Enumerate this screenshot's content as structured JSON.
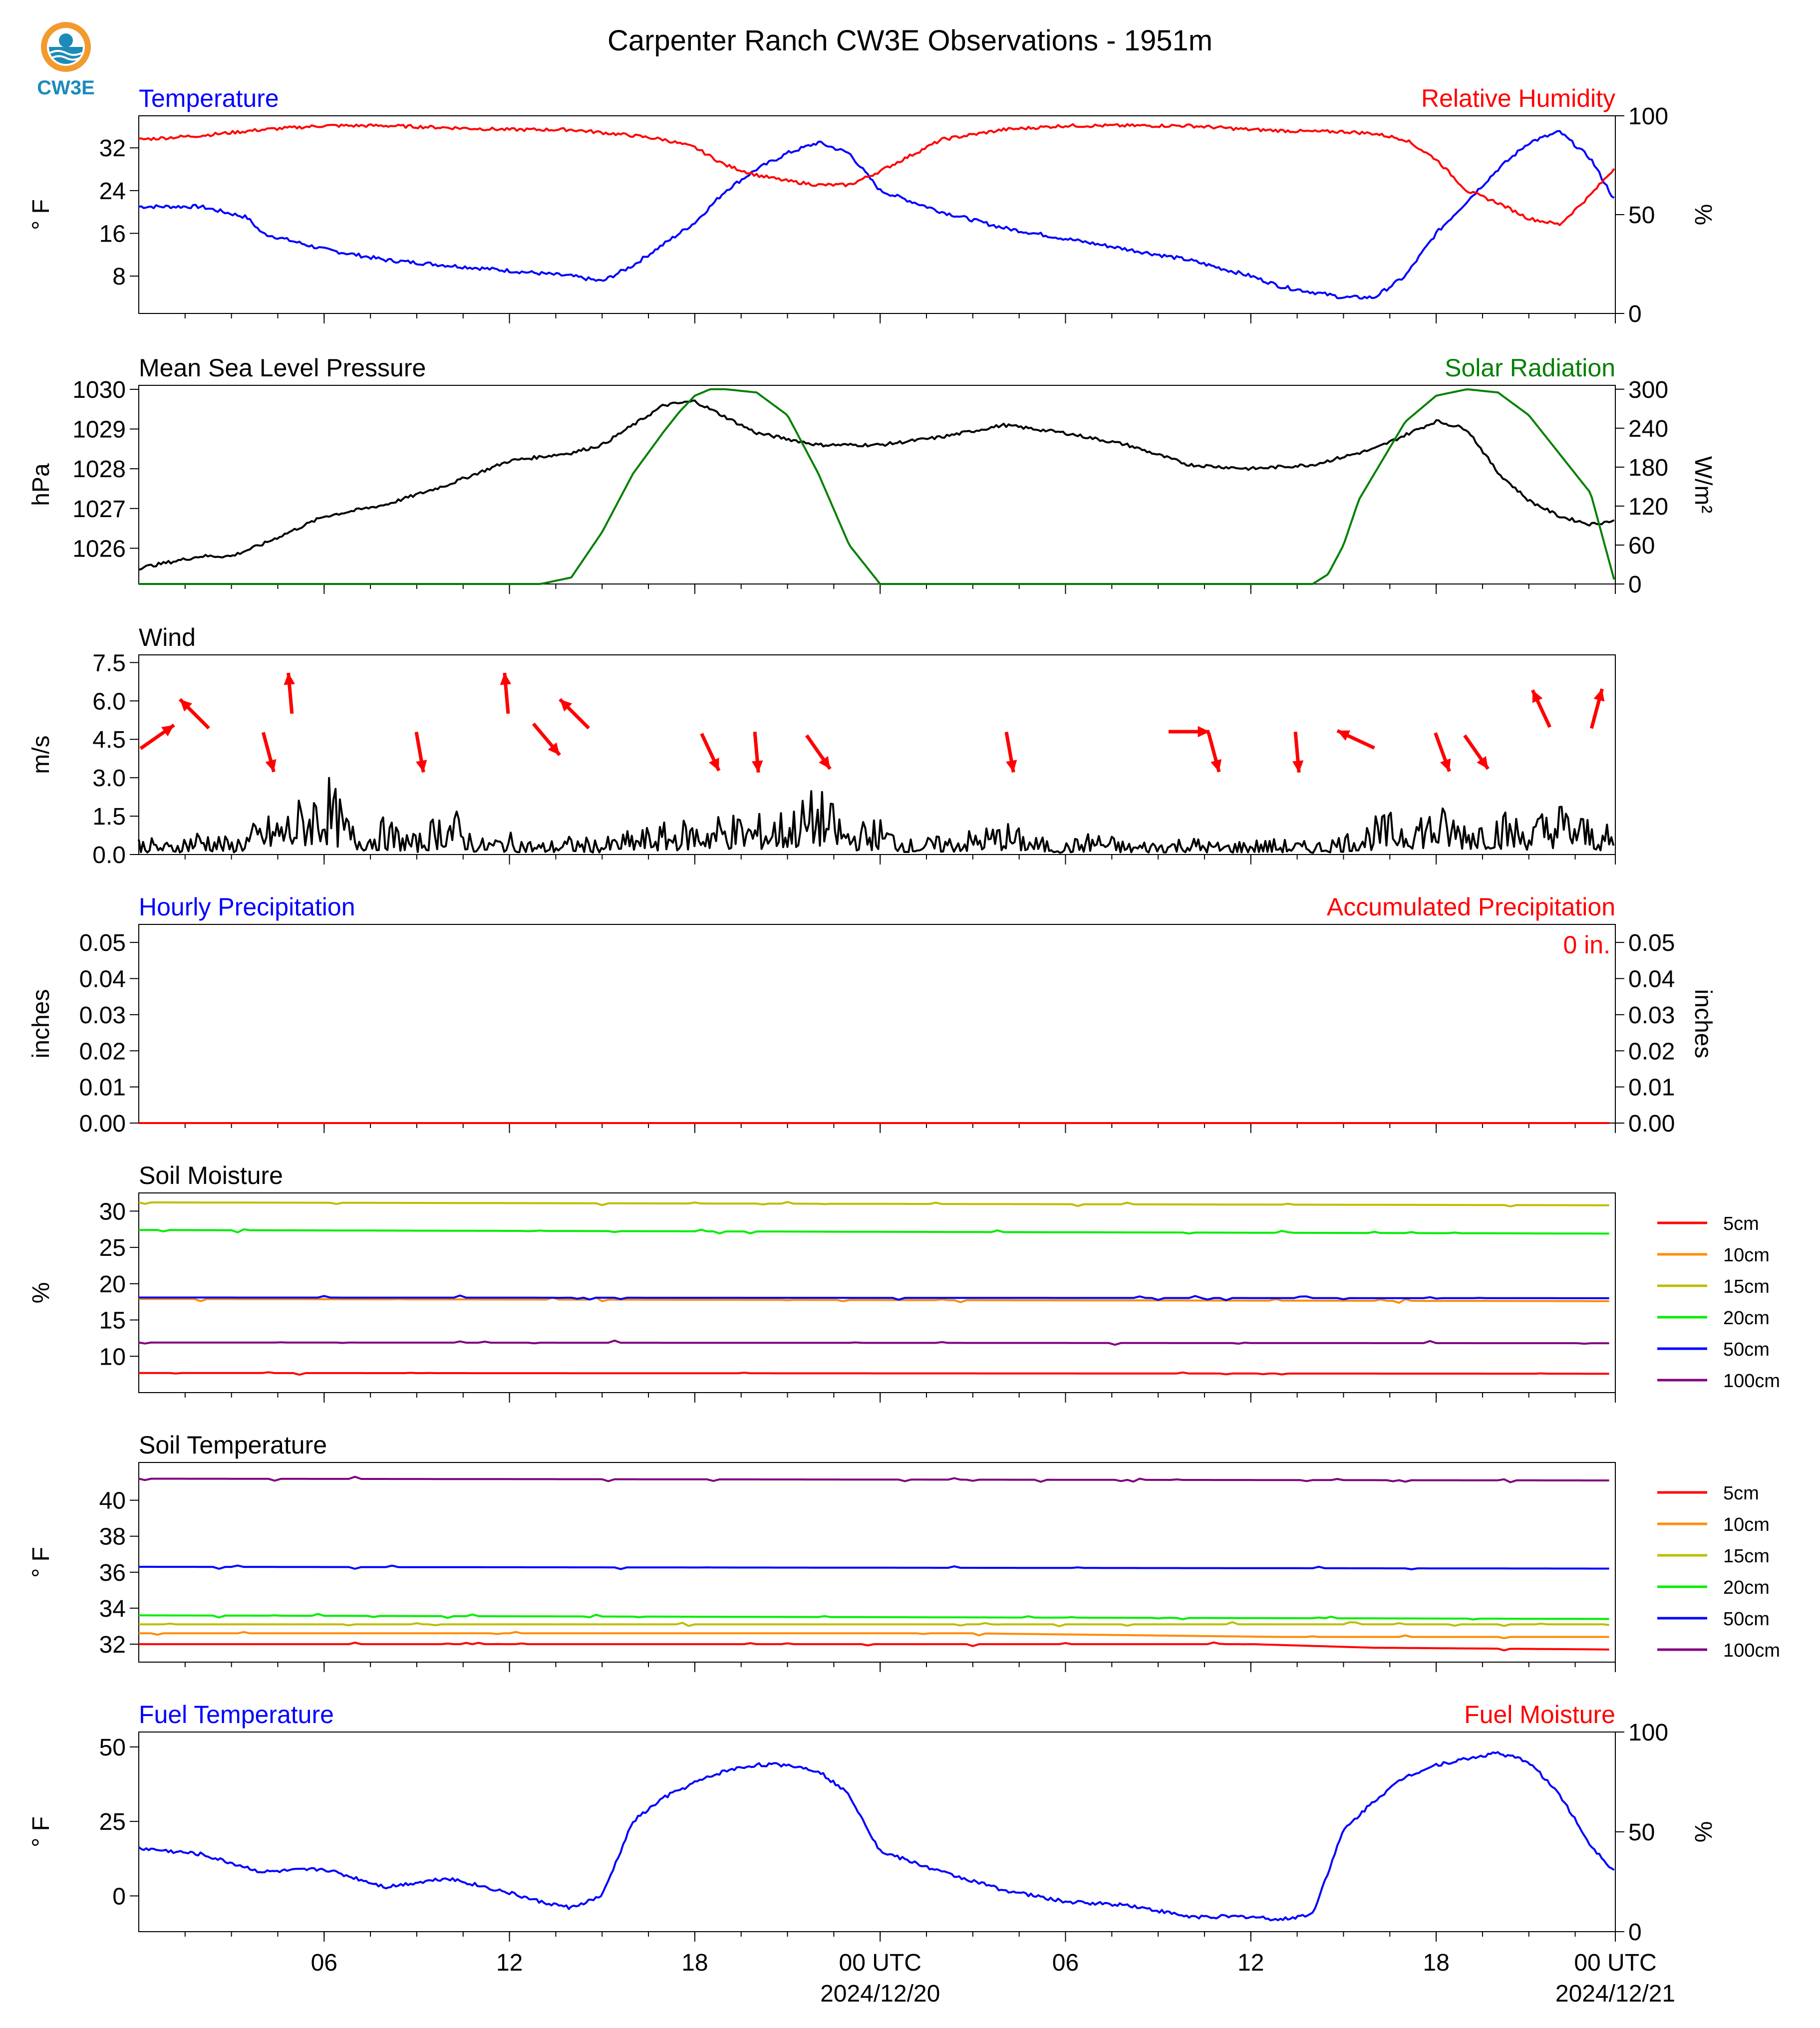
{
  "title": "Carpenter Ranch CW3E Observations - 1951m",
  "logo_text": "CW3E",
  "colors": {
    "blue": "#0000ff",
    "red": "#ff0000",
    "green": "#008000",
    "black": "#000000"
  },
  "x_axis": {
    "ticks": [
      "06",
      "12",
      "18",
      "00 UTC",
      "06",
      "12",
      "18",
      "00 UTC"
    ],
    "dates": [
      "2024/12/20",
      "2024/12/21"
    ]
  },
  "chart_data": [
    {
      "panel": "temperature_rh",
      "type": "line",
      "left_title": "Temperature",
      "right_title": "Relative Humidity",
      "ylabel": "° F",
      "y2label": "%",
      "yticks": [
        "8",
        "16",
        "24",
        "32"
      ],
      "y2ticks": [
        "0",
        "50",
        "100"
      ],
      "ylim": [
        1,
        38
      ],
      "y2lim": [
        0,
        100
      ],
      "series": [
        {
          "name": "Temperature",
          "color": "#0000ff",
          "x": [
            0,
            2,
            3.5,
            4,
            6,
            8,
            10,
            12,
            14,
            15,
            16,
            17,
            18,
            19,
            20,
            21,
            22,
            23,
            24,
            26,
            28,
            30,
            32,
            34,
            36,
            37,
            38,
            39,
            40,
            41,
            42,
            43,
            44,
            45,
            46,
            47,
            47.8
          ],
          "y": [
            21,
            21,
            19,
            16,
            13,
            11,
            10,
            9,
            8,
            7,
            10,
            14,
            18,
            24,
            28,
            31,
            33,
            31,
            24,
            20,
            17,
            15,
            13,
            11,
            8,
            6,
            5,
            4,
            4,
            8,
            16,
            22,
            28,
            33,
            35,
            30,
            22
          ]
        },
        {
          "name": "Relative Humidity",
          "color": "#ff0000",
          "x": [
            0,
            2,
            4,
            6,
            8,
            10,
            12,
            14,
            16,
            17,
            18,
            19,
            20,
            21,
            22,
            23,
            24,
            25,
            26,
            28,
            30,
            32,
            34,
            36,
            38,
            39,
            40,
            41,
            42,
            43,
            44,
            45,
            46,
            47,
            47.8
          ],
          "y": [
            88,
            90,
            93,
            95,
            95,
            94,
            93,
            93,
            90,
            88,
            84,
            75,
            70,
            67,
            65,
            65,
            72,
            80,
            88,
            93,
            95,
            95,
            95,
            93,
            92,
            92,
            91,
            88,
            78,
            62,
            56,
            48,
            45,
            60,
            74
          ]
        }
      ]
    },
    {
      "panel": "pressure_solar",
      "type": "line",
      "left_title": "Mean Sea Level Pressure",
      "right_title": "Solar Radiation",
      "ylabel": "hPa",
      "y2label": "W/m²",
      "yticks": [
        "1026",
        "1027",
        "1028",
        "1029",
        "1030"
      ],
      "y2ticks": [
        "0",
        "60",
        "120",
        "180",
        "240",
        "300"
      ],
      "ylim": [
        1025.1,
        1030.1
      ],
      "y2lim": [
        0,
        306
      ],
      "series": [
        {
          "name": "Mean Sea Level Pressure",
          "color": "#000000",
          "x": [
            0,
            2,
            3,
            4,
            6,
            8,
            10,
            12,
            14,
            15,
            16,
            17,
            18,
            19,
            20,
            22,
            24,
            26,
            28,
            30,
            32,
            34,
            36,
            38,
            40,
            42,
            43,
            44,
            45,
            46,
            47,
            47.8
          ],
          "y": [
            1025.5,
            1025.8,
            1025.8,
            1026.1,
            1026.8,
            1027.1,
            1027.6,
            1028.2,
            1028.4,
            1028.6,
            1029.1,
            1029.6,
            1029.7,
            1029.3,
            1028.9,
            1028.6,
            1028.6,
            1028.8,
            1029.1,
            1028.9,
            1028.6,
            1028.1,
            1028.0,
            1028.1,
            1028.5,
            1029.2,
            1029.0,
            1027.9,
            1027.2,
            1026.8,
            1026.6,
            1026.7
          ]
        },
        {
          "name": "Solar Radiation",
          "color": "#008000",
          "x": [
            0,
            13,
            14,
            15,
            16,
            17,
            17.5,
            18,
            18.5,
            19,
            20,
            21,
            22,
            23,
            24,
            30,
            38,
            38.5,
            39,
            39.5,
            40,
            40.5,
            41,
            42,
            43,
            44,
            45,
            46,
            47,
            47.8
          ],
          "y": [
            0,
            0,
            10,
            80,
            170,
            235,
            265,
            290,
            300,
            300,
            295,
            260,
            170,
            60,
            0,
            0,
            0,
            15,
            60,
            130,
            170,
            210,
            250,
            290,
            300,
            295,
            260,
            200,
            140,
            0
          ]
        }
      ]
    },
    {
      "panel": "wind",
      "type": "line",
      "left_title": "Wind",
      "ylabel": "m/s",
      "yticks": [
        "0.0",
        "1.5",
        "3.0",
        "4.5",
        "6.0",
        "7.5"
      ],
      "ylim": [
        0,
        7.8
      ],
      "series": [
        {
          "name": "Wind",
          "color": "#000000",
          "x": [
            0,
            1,
            2,
            3,
            4,
            5,
            6,
            7,
            8,
            9,
            10,
            11,
            12,
            13,
            14,
            15,
            16,
            17,
            18,
            19,
            20,
            21,
            22,
            23,
            24,
            25,
            26,
            27,
            28,
            29,
            30,
            31,
            32,
            33,
            34,
            35,
            36,
            37,
            38,
            39,
            40,
            41,
            42,
            43,
            44,
            45,
            46,
            47,
            47.8
          ],
          "y": [
            0.6,
            0.4,
            0.9,
            0.5,
            1.2,
            1.6,
            2.8,
            0.9,
            1.2,
            0.6,
            1.8,
            0.5,
            0.7,
            0.4,
            0.6,
            0.5,
            0.8,
            1.0,
            1.2,
            1.4,
            1.3,
            1.5,
            2.2,
            1.0,
            1.2,
            0.5,
            0.6,
            0.8,
            1.1,
            0.6,
            0.4,
            0.8,
            0.4,
            0.5,
            0.6,
            0.4,
            0.5,
            0.5,
            0.4,
            0.7,
            1.2,
            1.5,
            1.6,
            1.3,
            1.5,
            1.2,
            1.8,
            1.2,
            0.8
          ]
        }
      ],
      "arrows": [
        {
          "x": 0.6,
          "y": 4.6,
          "dir_deg": 55
        },
        {
          "x": 1.8,
          "y": 5.5,
          "dir_deg": -45
        },
        {
          "x": 4.2,
          "y": 4.0,
          "dir_deg": 165
        },
        {
          "x": 4.9,
          "y": 6.3,
          "dir_deg": -5
        },
        {
          "x": 9.1,
          "y": 4.0,
          "dir_deg": 170
        },
        {
          "x": 11.9,
          "y": 6.3,
          "dir_deg": -5
        },
        {
          "x": 13.2,
          "y": 4.5,
          "dir_deg": 140
        },
        {
          "x": 14.1,
          "y": 5.5,
          "dir_deg": -45
        },
        {
          "x": 18.5,
          "y": 4.0,
          "dir_deg": 155
        },
        {
          "x": 20.0,
          "y": 4.0,
          "dir_deg": 175
        },
        {
          "x": 22.0,
          "y": 4.0,
          "dir_deg": 145
        },
        {
          "x": 28.2,
          "y": 4.0,
          "dir_deg": 170
        },
        {
          "x": 34.0,
          "y": 4.8,
          "dir_deg": 90
        },
        {
          "x": 34.8,
          "y": 4.0,
          "dir_deg": 165
        },
        {
          "x": 37.5,
          "y": 4.0,
          "dir_deg": 175
        },
        {
          "x": 39.4,
          "y": 4.5,
          "dir_deg": -65
        },
        {
          "x": 42.2,
          "y": 4.0,
          "dir_deg": 160
        },
        {
          "x": 43.3,
          "y": 4.0,
          "dir_deg": 145
        },
        {
          "x": 45.4,
          "y": 5.7,
          "dir_deg": -25
        },
        {
          "x": 47.2,
          "y": 5.7,
          "dir_deg": 15
        }
      ]
    },
    {
      "panel": "precipitation",
      "type": "line",
      "left_title": "Hourly Precipitation",
      "right_title": "Accumulated Precipitation",
      "annotation": "0 in.",
      "ylabel": "inches",
      "y2label": "inches",
      "yticks": [
        "0.00",
        "0.01",
        "0.02",
        "0.03",
        "0.04",
        "0.05"
      ],
      "y2ticks": [
        "0.00",
        "0.01",
        "0.02",
        "0.03",
        "0.04",
        "0.05"
      ],
      "ylim": [
        0,
        0.055
      ],
      "series": [
        {
          "name": "Hourly Precipitation",
          "color": "#0000ff",
          "x": [
            0,
            47.8
          ],
          "y": [
            0,
            0
          ]
        },
        {
          "name": "Accumulated Precipitation",
          "color": "#ff0000",
          "x": [
            0,
            47.8
          ],
          "y": [
            0,
            0
          ]
        }
      ]
    },
    {
      "panel": "soil_moisture",
      "type": "line",
      "left_title": "Soil Moisture",
      "ylabel": "%",
      "yticks": [
        "10",
        "15",
        "20",
        "25",
        "30"
      ],
      "ylim": [
        5,
        32.5
      ],
      "legend": [
        "5cm",
        "10cm",
        "15cm",
        "20cm",
        "50cm",
        "100cm"
      ],
      "series": [
        {
          "name": "5cm",
          "color": "#ff0000",
          "x": [
            0,
            47.8
          ],
          "y": [
            7.7,
            7.6
          ]
        },
        {
          "name": "10cm",
          "color": "#ff8c00",
          "x": [
            0,
            47.8
          ],
          "y": [
            17.9,
            17.6
          ]
        },
        {
          "name": "15cm",
          "color": "#bdbd00",
          "x": [
            0,
            47.8
          ],
          "y": [
            31.2,
            30.8
          ]
        },
        {
          "name": "20cm",
          "color": "#00ee00",
          "x": [
            0,
            47.8
          ],
          "y": [
            27.4,
            26.9
          ]
        },
        {
          "name": "50cm",
          "color": "#0000ff",
          "x": [
            0,
            47.8
          ],
          "y": [
            18.1,
            18.0
          ]
        },
        {
          "name": "100cm",
          "color": "#800080",
          "x": [
            0,
            47.8
          ],
          "y": [
            11.9,
            11.8
          ]
        }
      ]
    },
    {
      "panel": "soil_temperature",
      "type": "line",
      "left_title": "Soil Temperature",
      "ylabel": "° F",
      "yticks": [
        "32",
        "34",
        "36",
        "38",
        "40"
      ],
      "ylim": [
        31.0,
        42.1
      ],
      "legend": [
        "5cm",
        "10cm",
        "15cm",
        "20cm",
        "50cm",
        "100cm"
      ],
      "series": [
        {
          "name": "5cm",
          "color": "#ff0000",
          "x": [
            0,
            36,
            40,
            47.8
          ],
          "y": [
            32.0,
            32.0,
            31.8,
            31.7
          ]
        },
        {
          "name": "10cm",
          "color": "#ff8c00",
          "x": [
            0,
            27,
            37,
            47.8
          ],
          "y": [
            32.6,
            32.6,
            32.4,
            32.4
          ]
        },
        {
          "name": "15cm",
          "color": "#bdbd00",
          "x": [
            0,
            47.8
          ],
          "y": [
            33.1,
            33.1
          ]
        },
        {
          "name": "20cm",
          "color": "#00ee00",
          "x": [
            0,
            47.8
          ],
          "y": [
            33.6,
            33.4
          ]
        },
        {
          "name": "50cm",
          "color": "#0000ff",
          "x": [
            0,
            47.8
          ],
          "y": [
            36.3,
            36.2
          ]
        },
        {
          "name": "100cm",
          "color": "#800080",
          "x": [
            0,
            47.8
          ],
          "y": [
            41.2,
            41.1
          ]
        }
      ]
    },
    {
      "panel": "fuel",
      "type": "line",
      "left_title": "Fuel Temperature",
      "right_title": "Fuel Moisture",
      "ylabel": "° F",
      "y2label": "%",
      "yticks": [
        "0",
        "25",
        "50"
      ],
      "y2ticks": [
        "0",
        "50",
        "100"
      ],
      "ylim": [
        -12,
        55
      ],
      "y2lim": [
        0,
        100
      ],
      "series": [
        {
          "name": "Fuel Temperature",
          "color": "#0000ff",
          "x": [
            0,
            2,
            4,
            6,
            8,
            10,
            12,
            13,
            14,
            15,
            16,
            17,
            18,
            19,
            20,
            21,
            22,
            23,
            24,
            26,
            28,
            30,
            32,
            34,
            36,
            37,
            38,
            39,
            40,
            41,
            42,
            43,
            44,
            45,
            46,
            47,
            47.8
          ],
          "y": [
            16,
            14,
            8,
            9,
            3,
            6,
            1,
            -2,
            -4,
            0,
            25,
            33,
            38,
            42,
            44,
            44,
            42,
            34,
            15,
            8,
            2,
            -2,
            -3,
            -7,
            -7,
            -8,
            -6,
            22,
            32,
            40,
            44,
            46,
            48,
            45,
            34,
            17,
            8
          ]
        }
      ]
    }
  ]
}
